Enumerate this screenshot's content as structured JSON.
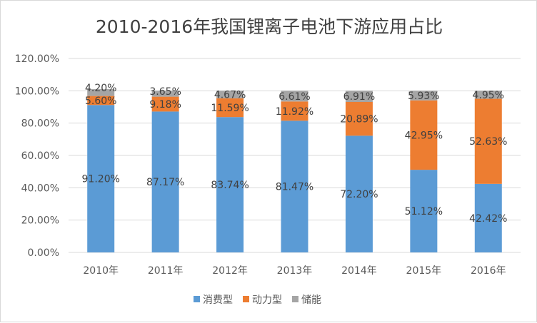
{
  "chart_data": {
    "type": "bar",
    "stacked": true,
    "title": "2010-2016年我国锂离子电池下游应用占比",
    "categories": [
      "2010年",
      "2011年",
      "2012年",
      "2013年",
      "2014年",
      "2015年",
      "2016年"
    ],
    "series": [
      {
        "name": "消费型",
        "color": "#5b9bd5",
        "values": [
          91.2,
          87.17,
          83.74,
          81.47,
          72.2,
          51.12,
          42.42
        ]
      },
      {
        "name": "动力型",
        "color": "#ed7d31",
        "values": [
          5.6,
          9.18,
          11.59,
          11.92,
          20.89,
          42.95,
          52.63
        ]
      },
      {
        "name": "储能",
        "color": "#a5a5a5",
        "values": [
          4.2,
          3.65,
          4.67,
          6.61,
          6.91,
          5.93,
          4.95
        ]
      }
    ],
    "ylim": [
      0,
      120
    ],
    "yticks": [
      "0.00%",
      "20.00%",
      "40.00%",
      "60.00%",
      "80.00%",
      "100.00%",
      "120.00%"
    ],
    "grid": true,
    "legend": "bottom"
  }
}
